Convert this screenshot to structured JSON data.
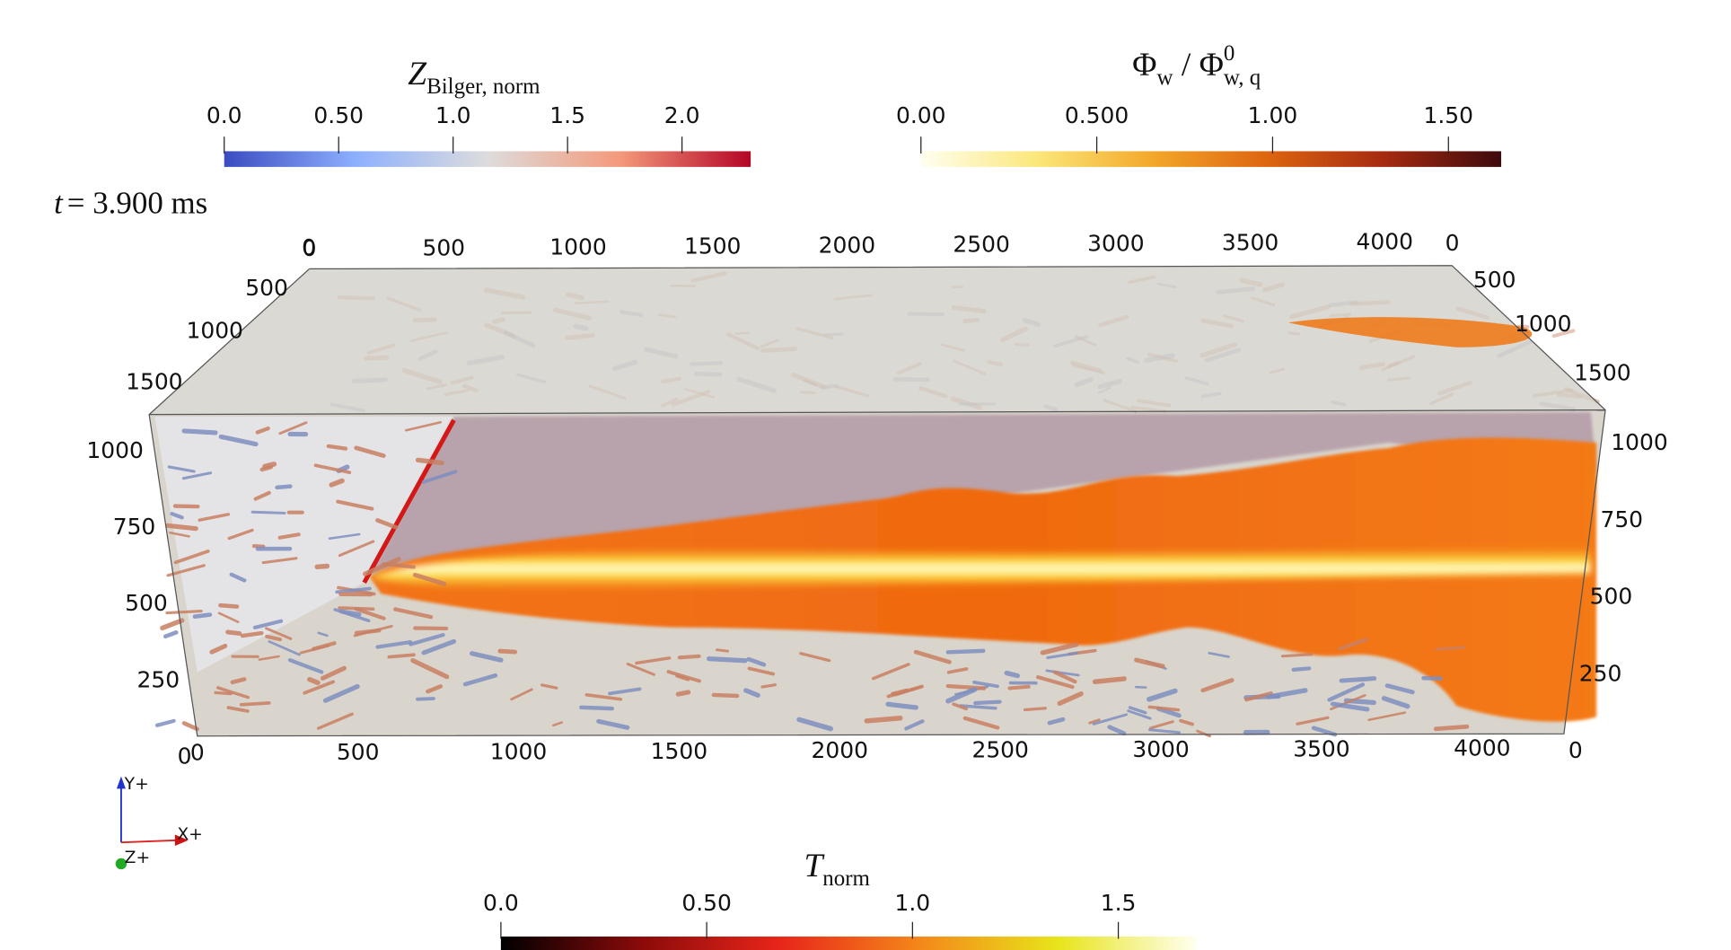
{
  "time_label": {
    "variable": "t",
    "text": "= 3.900 ms"
  },
  "colorbars": [
    {
      "title": {
        "parts": [
          {
            "text": "Z",
            "style": "italic"
          },
          {
            "text": "Bilger, norm",
            "shift": "sub"
          }
        ]
      },
      "range": [
        0,
        2.3
      ],
      "ticks": [
        {
          "value": 0,
          "label": "0.0"
        },
        {
          "value": 0.5,
          "label": "0.50"
        },
        {
          "value": 1,
          "label": "1.0"
        },
        {
          "value": 1.5,
          "label": "1.5"
        },
        {
          "value": 2,
          "label": "2.0"
        }
      ],
      "colors": [
        "#3b4cc0",
        "#8db0fe",
        "#dddcdc",
        "#f49a7b",
        "#b40426"
      ]
    },
    {
      "title": {
        "parts": [
          {
            "text": "Φ"
          },
          {
            "text": "w",
            "shift": "sub"
          },
          {
            "text": " / "
          },
          {
            "text": "Φ"
          },
          {
            "text": "0",
            "shift": "super"
          },
          {
            "text": "w, q",
            "shift": "sub",
            "stacked": true
          }
        ]
      },
      "range": [
        0,
        1.65
      ],
      "ticks": [
        {
          "value": 0,
          "label": "0.00"
        },
        {
          "value": 0.5,
          "label": "0.500"
        },
        {
          "value": 1,
          "label": "1.00"
        },
        {
          "value": 1.5,
          "label": "1.50"
        }
      ],
      "colors": [
        "#fffff0",
        "#fbe77a",
        "#f3a72a",
        "#dc6410",
        "#a52a10",
        "#3d0a0d"
      ]
    },
    {
      "title": {
        "parts": [
          {
            "text": "T",
            "style": "italic"
          },
          {
            "text": "norm",
            "shift": "sub"
          }
        ]
      },
      "range": [
        0,
        1.69
      ],
      "ticks": [
        {
          "value": 0,
          "label": "0.0"
        },
        {
          "value": 0.5,
          "label": "0.50"
        },
        {
          "value": 1,
          "label": "1.0"
        },
        {
          "value": 1.5,
          "label": "1.5"
        }
      ],
      "colors": [
        "#000000",
        "#8a0a0a",
        "#e8251a",
        "#f4861a",
        "#e8e41a",
        "#fffff0"
      ]
    }
  ],
  "axes": {
    "x": {
      "ticks": [
        0,
        500,
        1000,
        1500,
        2000,
        2500,
        3000,
        3500,
        4000
      ]
    },
    "y": {
      "ticks": [
        0,
        250,
        500,
        750,
        1000
      ]
    },
    "z": {
      "ticks": [
        0,
        500,
        1000,
        1500
      ]
    }
  },
  "triad": {
    "x": "X+",
    "y": "Y+",
    "z": "Z+"
  }
}
